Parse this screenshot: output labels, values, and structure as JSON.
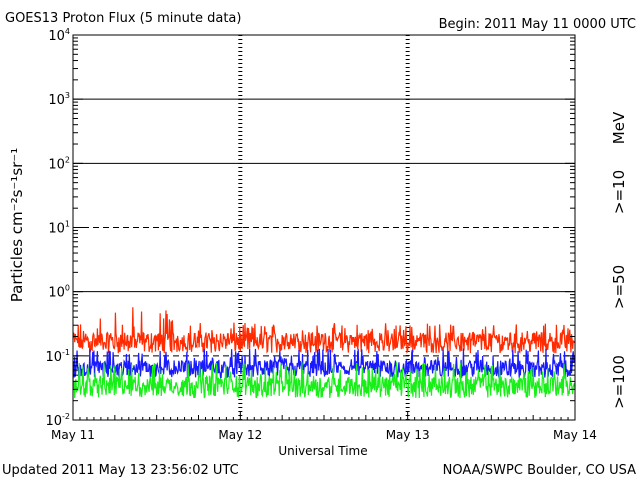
{
  "header": {
    "title": "GOES13 Proton Flux (5 minute data)",
    "begin": "Begin: 2011 May 11 0000 UTC"
  },
  "footer": {
    "updated": "Updated 2011 May 13 23:56:02 UTC",
    "credit": "NOAA/SWPC Boulder, CO USA"
  },
  "colors": {
    "ge10": "#ff2a00",
    "ge50": "#1a1aff",
    "ge100": "#18ee18",
    "axis": "#000000"
  },
  "chart_data": {
    "type": "line",
    "title": "GOES13 Proton Flux (5 minute data)",
    "xlabel": "Universal Time",
    "ylabel": "Particles cm⁻²s⁻¹sr⁻¹",
    "y_scale": "log",
    "ylim": [
      0.01,
      10000
    ],
    "x_range_days": [
      0,
      3
    ],
    "x_ticks": [
      {
        "value": 0,
        "label": "May 11"
      },
      {
        "value": 1,
        "label": "May 12"
      },
      {
        "value": 2,
        "label": "May 13"
      },
      {
        "value": 3,
        "label": "May 14"
      }
    ],
    "y_ticks": [
      {
        "base": "10",
        "exp": "4",
        "value": 10000
      },
      {
        "base": "10",
        "exp": "3",
        "value": 1000
      },
      {
        "base": "10",
        "exp": "2",
        "value": 100
      },
      {
        "base": "10",
        "exp": "1",
        "value": 10
      },
      {
        "base": "10",
        "exp": "0",
        "value": 1
      },
      {
        "base": "10",
        "exp": "-1",
        "value": 0.1
      },
      {
        "base": "10",
        "exp": "-2",
        "value": 0.01
      }
    ],
    "solid_lines": [
      1000,
      100,
      1
    ],
    "dashed_lines": [
      10,
      0.1
    ],
    "energy_unit": "MeV",
    "legend_placement": "right",
    "series": [
      {
        "name": ">=10",
        "color": "#ff2a00",
        "typical": 0.17,
        "low": 0.11,
        "high": 0.6
      },
      {
        "name": ">=50",
        "color": "#1a1aff",
        "typical": 0.065,
        "low": 0.045,
        "high": 0.13
      },
      {
        "name": ">=100",
        "color": "#18ee18",
        "typical": 0.035,
        "low": 0.022,
        "high": 0.08
      }
    ]
  }
}
